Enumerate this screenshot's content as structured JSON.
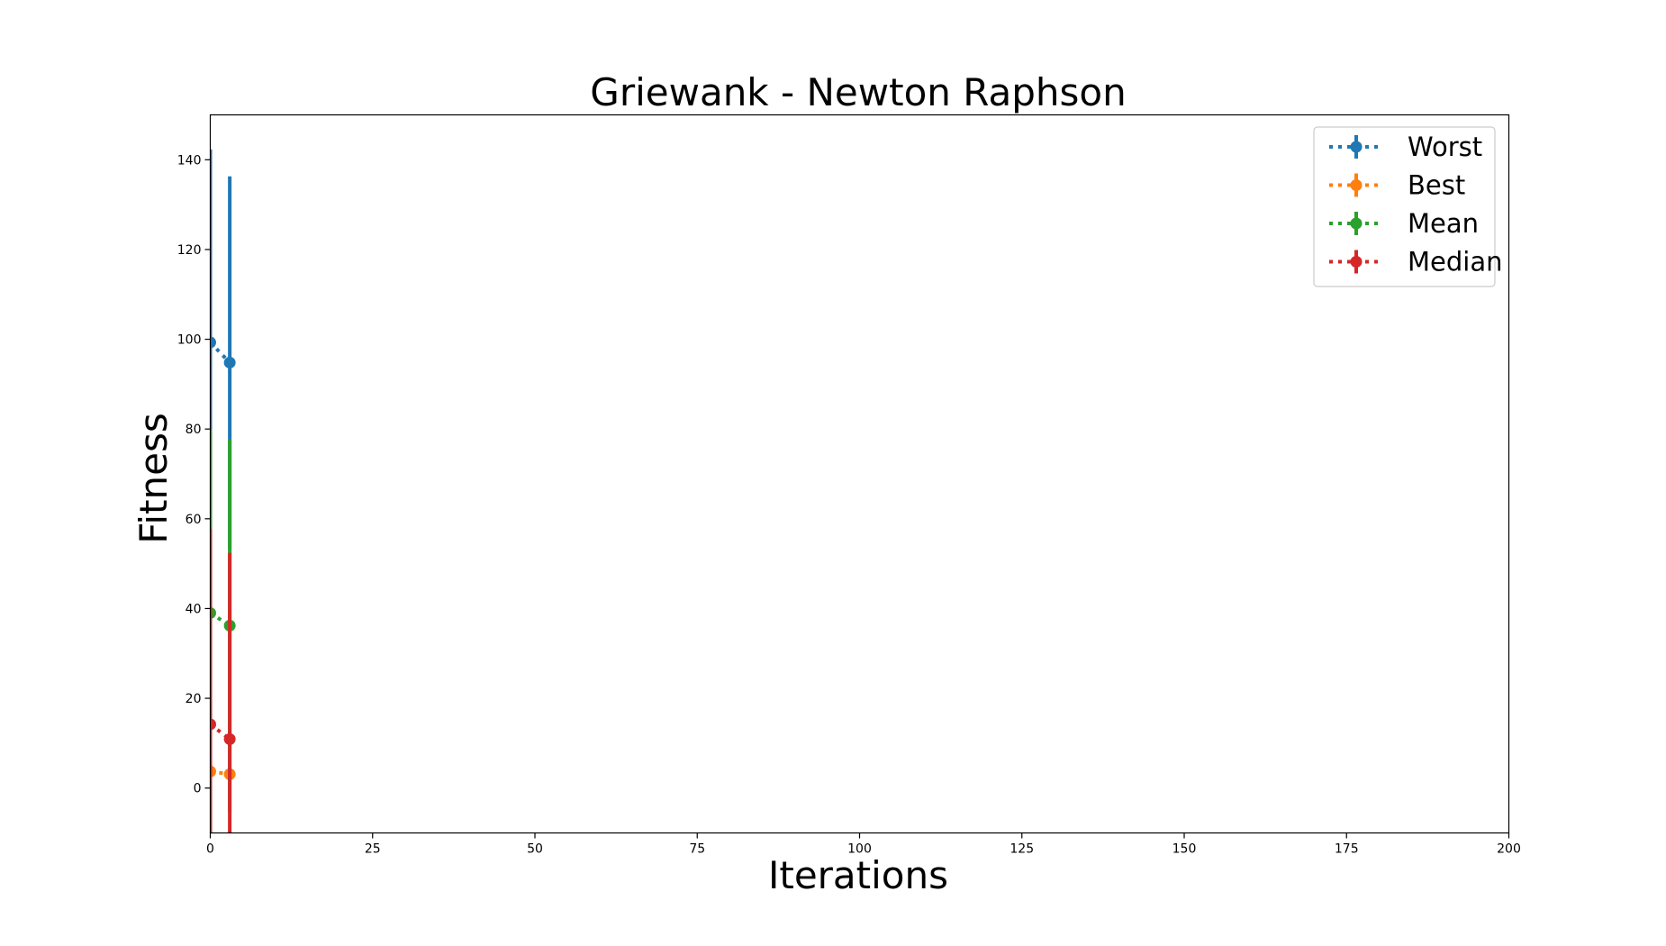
{
  "chart_data": {
    "type": "line",
    "title": "Griewank - Newton Raphson",
    "xlabel": "Iterations",
    "ylabel": "Fitness",
    "xlim": [
      0,
      200
    ],
    "ylim": [
      -10,
      150
    ],
    "xticks": [
      0,
      25,
      50,
      75,
      100,
      125,
      150,
      175,
      200
    ],
    "yticks": [
      0,
      20,
      40,
      60,
      80,
      100,
      120,
      140
    ],
    "grid": false,
    "legend_position": "top-right",
    "x": [
      0,
      3
    ],
    "series": [
      {
        "name": "Worst",
        "color": "#1f77b4",
        "values": [
          99.3,
          94.8
        ],
        "errors": [
          43.0,
          41.5
        ]
      },
      {
        "name": "Best",
        "color": "#ff7f0e",
        "values": [
          3.7,
          3.1
        ],
        "errors": [
          0.4,
          0.4
        ]
      },
      {
        "name": "Mean",
        "color": "#2ca02c",
        "values": [
          39.0,
          36.2
        ],
        "errors": [
          41.0,
          41.5
        ]
      },
      {
        "name": "Median",
        "color": "#d62728",
        "values": [
          14.2,
          10.9
        ],
        "errors": [
          43.5,
          41.5
        ]
      }
    ]
  }
}
